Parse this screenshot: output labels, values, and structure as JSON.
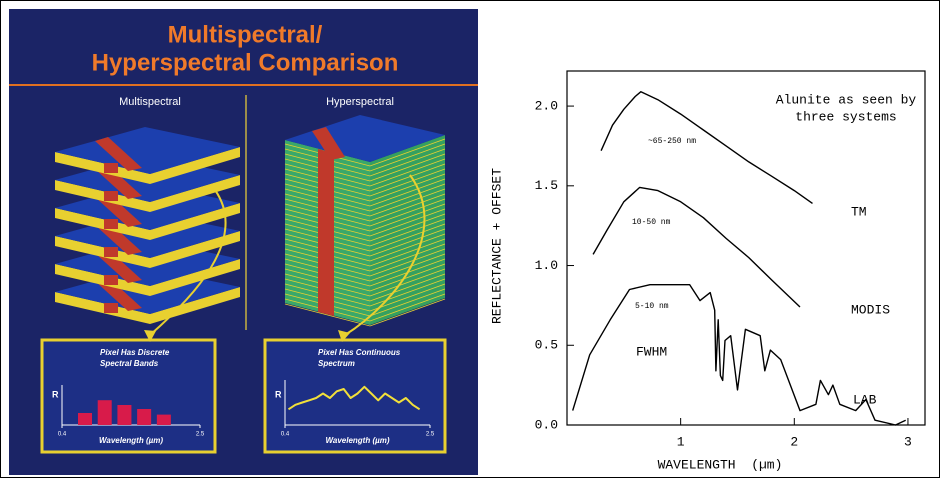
{
  "illustration": {
    "title": [
      "Multispectral/",
      "Hyperspectral Comparison"
    ],
    "left_label": "Multispectral",
    "right_label": "Hyperspectral"
  },
  "chart_data": [
    {
      "type": "bar",
      "title": [
        "Pixel Has Discrete",
        "Spectral Bands"
      ],
      "y_label": "R",
      "x_label": "Wavelength (µm)",
      "x": [
        0.75,
        1.05,
        1.35,
        1.65,
        1.95
      ],
      "values": [
        0.3,
        0.62,
        0.5,
        0.4,
        0.26
      ],
      "color": "#d81b4a",
      "xlim": [
        0.4,
        2.5
      ],
      "xticks": [
        0.4,
        2.5
      ],
      "ylim": [
        0,
        1
      ]
    },
    {
      "type": "line",
      "title": [
        "Pixel Has Continuous",
        "Spectrum"
      ],
      "y_label": "R",
      "x_label": "Wavelength (µm)",
      "x": [
        0.45,
        0.55,
        0.65,
        0.75,
        0.85,
        0.95,
        1.05,
        1.15,
        1.25,
        1.35,
        1.45,
        1.55,
        1.65,
        1.75,
        1.85,
        1.95,
        2.05,
        2.15,
        2.25,
        2.35
      ],
      "values": [
        0.35,
        0.45,
        0.5,
        0.55,
        0.6,
        0.7,
        0.6,
        0.75,
        0.8,
        0.6,
        0.7,
        0.85,
        0.7,
        0.55,
        0.7,
        0.6,
        0.5,
        0.6,
        0.45,
        0.35
      ],
      "color": "#f2e03a",
      "xlim": [
        0.4,
        2.5
      ],
      "xticks": [
        0.4,
        2.5
      ],
      "ylim": [
        0,
        1
      ]
    },
    {
      "type": "line",
      "x_label": "WAVELENGTH  (µm)",
      "y_label": "REFLECTANCE + OFFSET",
      "annotations": [
        "Alunite as seen by",
        "three systems",
        "~65-250 nm",
        "10-50 nm",
        "5-10 nm",
        "FWHM"
      ],
      "xlim": [
        0,
        3.15
      ],
      "xticks": [
        1,
        2,
        3
      ],
      "ylim": [
        0,
        2.22
      ],
      "yticks": [
        {
          "value": 0,
          "label": "0.0"
        },
        {
          "value": 0.5,
          "label": "0.5"
        },
        {
          "value": 1,
          "label": "1.0"
        },
        {
          "value": 1.5,
          "label": "1.5"
        },
        {
          "value": 2,
          "label": "2.0"
        }
      ],
      "series": [
        {
          "name": "TM",
          "color": "#000000",
          "x": [
            0.3,
            0.4,
            0.5,
            0.6,
            0.65,
            0.8,
            1.0,
            1.2,
            1.4,
            1.6,
            1.8,
            2.0,
            2.16
          ],
          "values": [
            1.72,
            1.88,
            1.98,
            2.06,
            2.09,
            2.04,
            1.95,
            1.85,
            1.75,
            1.65,
            1.56,
            1.47,
            1.39
          ]
        },
        {
          "name": "MODIS",
          "color": "#000000",
          "x": [
            0.23,
            0.35,
            0.5,
            0.64,
            0.8,
            1.0,
            1.2,
            1.4,
            1.6,
            1.8,
            2.05
          ],
          "values": [
            1.07,
            1.22,
            1.4,
            1.49,
            1.47,
            1.4,
            1.3,
            1.17,
            1.05,
            0.91,
            0.74
          ]
        },
        {
          "name": "LAB",
          "color": "#000000",
          "x": [
            0.05,
            0.2,
            0.38,
            0.55,
            0.73,
            1.08,
            1.17,
            1.26,
            1.3,
            1.31,
            1.33,
            1.35,
            1.37,
            1.39,
            1.44,
            1.5,
            1.57,
            1.7,
            1.74,
            1.79,
            1.88,
            2.05,
            2.19,
            2.23,
            2.3,
            2.34,
            2.4,
            2.54,
            2.63,
            2.71,
            2.89,
            2.98
          ],
          "values": [
            0.09,
            0.44,
            0.66,
            0.85,
            0.88,
            0.88,
            0.78,
            0.83,
            0.72,
            0.34,
            0.66,
            0.31,
            0.28,
            0.53,
            0.56,
            0.22,
            0.6,
            0.56,
            0.34,
            0.47,
            0.41,
            0.09,
            0.13,
            0.28,
            0.19,
            0.25,
            0.13,
            0.09,
            0.16,
            0.03,
            0,
            0.03
          ]
        }
      ]
    }
  ]
}
